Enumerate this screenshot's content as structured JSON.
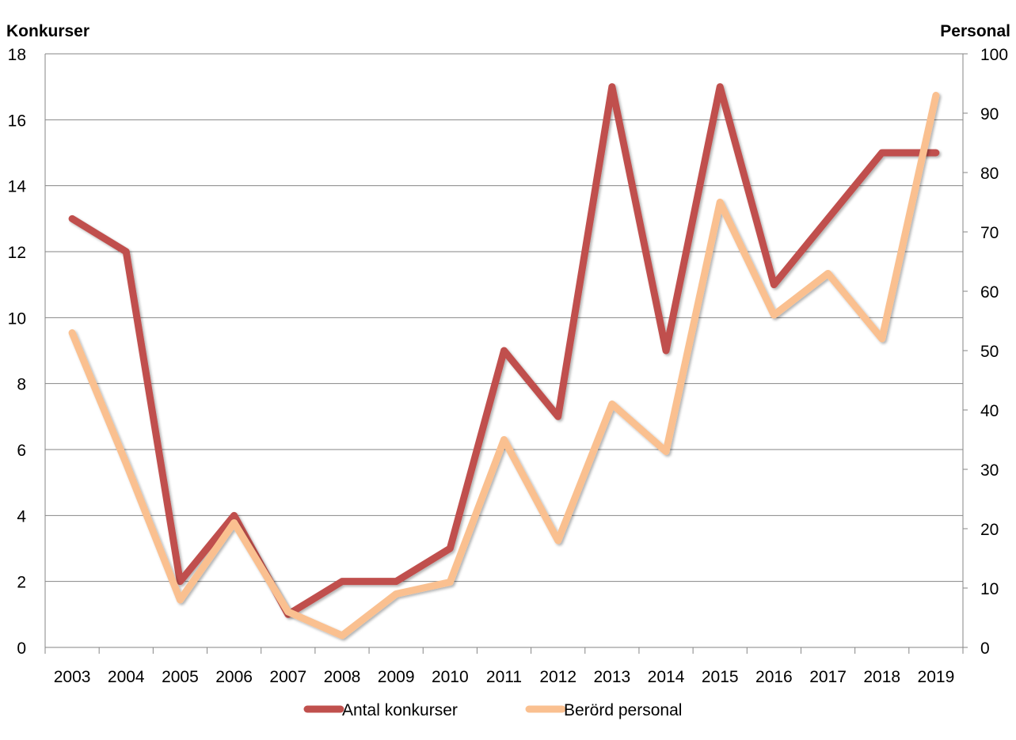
{
  "chart_data": {
    "type": "line",
    "categories": [
      "2003",
      "2004",
      "2005",
      "2006",
      "2007",
      "2008",
      "2009",
      "2010",
      "2011",
      "2012",
      "2013",
      "2014",
      "2015",
      "2016",
      "2017",
      "2018",
      "2019"
    ],
    "left_axis": {
      "label": "Konkurser",
      "min": 0,
      "max": 18,
      "step": 2
    },
    "right_axis": {
      "label": "Personal",
      "min": 0,
      "max": 100,
      "step": 10
    },
    "grid": true,
    "legend_position": "bottom",
    "series": [
      {
        "name": "Antal konkurser",
        "axis": "left",
        "color": "#C0504D",
        "values": [
          13,
          12,
          2,
          4,
          1,
          2,
          2,
          3,
          9,
          7,
          17,
          9,
          17,
          11,
          13,
          15,
          15
        ]
      },
      {
        "name": "Berörd personal",
        "axis": "right",
        "color": "#FAC090",
        "values": [
          53,
          31,
          8,
          21,
          6,
          2,
          9,
          11,
          35,
          18,
          41,
          33,
          75,
          56,
          63,
          52,
          93
        ]
      }
    ]
  }
}
